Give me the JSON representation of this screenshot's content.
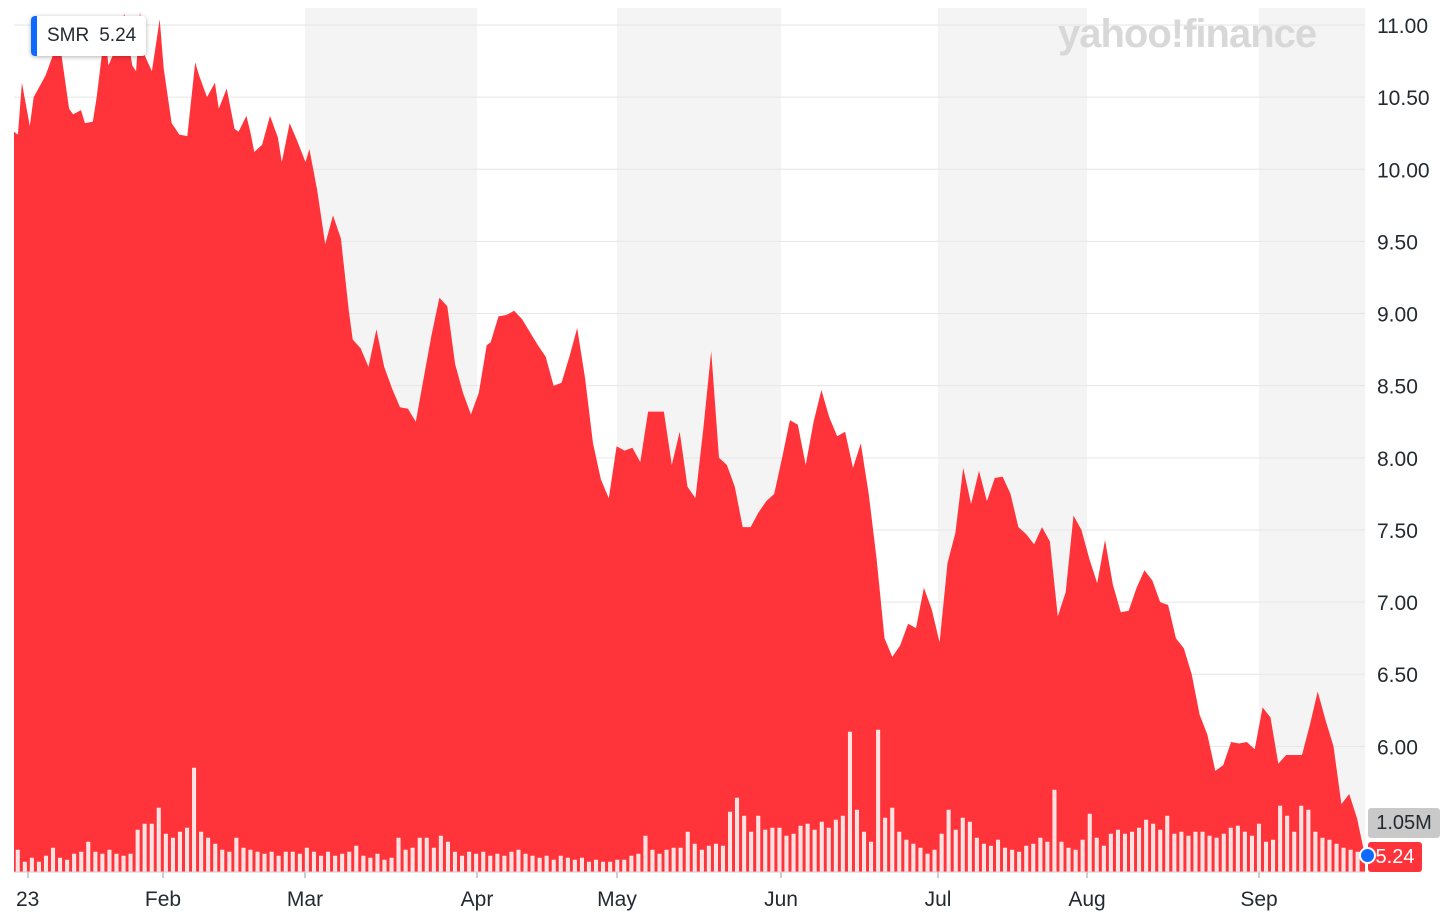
{
  "tooltip": {
    "symbol": "SMR",
    "price": "5.24"
  },
  "watermark": "yahoo!finance",
  "badges": {
    "volume": "1.05M",
    "price": "5.24"
  },
  "colors": {
    "area": "#ff333a",
    "band": "#f4f4f4",
    "grid": "#e6e6e6",
    "accent": "#0f69ff"
  },
  "chart_data": {
    "type": "area",
    "ticker": "SMR",
    "ylim": [
      5.24,
      11.1
    ],
    "yticks": [
      "11.00",
      "10.50",
      "10.00",
      "9.50",
      "9.00",
      "8.50",
      "8.00",
      "7.50",
      "7.00",
      "6.50",
      "6.00"
    ],
    "xticks": [
      "23",
      "Feb",
      "Mar",
      "Apr",
      "May",
      "Jun",
      "Jul",
      "Aug",
      "Sep"
    ],
    "price_points": [
      [
        "Jan 1",
        10.26
      ],
      [
        "Jan 2",
        10.24
      ],
      [
        "Jan 3",
        10.6
      ],
      [
        "Jan 5",
        10.3
      ],
      [
        "Jan 6",
        10.5
      ],
      [
        "Jan 8",
        10.6
      ],
      [
        "Jan 9",
        10.65
      ],
      [
        "Jan 11",
        10.8
      ],
      [
        "Jan 12",
        10.9
      ],
      [
        "Jan 13",
        10.8
      ],
      [
        "Jan 15",
        10.42
      ],
      [
        "Jan 16",
        10.38
      ],
      [
        "Jan 18",
        10.41
      ],
      [
        "Jan 19",
        10.32
      ],
      [
        "Jan 21",
        10.33
      ],
      [
        "Jan 22",
        10.5
      ],
      [
        "Jan 24",
        10.95
      ],
      [
        "Jan 25",
        10.72
      ],
      [
        "Jan 27",
        10.85
      ],
      [
        "Jan 29",
        11.08
      ],
      [
        "Jan 31",
        10.72
      ],
      [
        "Feb 1",
        10.68
      ],
      [
        "Feb 2",
        11.09
      ],
      [
        "Feb 3",
        10.8
      ],
      [
        "Feb 5",
        10.68
      ],
      [
        "Feb 7",
        11.04
      ],
      [
        "Feb 8",
        10.7
      ],
      [
        "Feb 10",
        10.32
      ],
      [
        "Feb 12",
        10.24
      ],
      [
        "Feb 14",
        10.23
      ],
      [
        "Feb 16",
        10.74
      ],
      [
        "Feb 17",
        10.65
      ],
      [
        "Feb 19",
        10.5
      ],
      [
        "Feb 21",
        10.6
      ],
      [
        "Feb 22",
        10.42
      ],
      [
        "Feb 24",
        10.56
      ],
      [
        "Feb 26",
        10.28
      ],
      [
        "Feb 27",
        10.26
      ],
      [
        "Mar 1",
        10.37
      ],
      [
        "Mar 2",
        10.26
      ],
      [
        "Mar 3",
        10.12
      ],
      [
        "Mar 5",
        10.17
      ],
      [
        "Mar 7",
        10.37
      ],
      [
        "Mar 9",
        10.22
      ],
      [
        "Mar 10",
        10.05
      ],
      [
        "Mar 12",
        10.32
      ],
      [
        "Mar 14",
        10.19
      ],
      [
        "Mar 16",
        10.05
      ],
      [
        "Mar 17",
        10.14
      ],
      [
        "Mar 19",
        9.85
      ],
      [
        "Mar 21",
        9.48
      ],
      [
        "Mar 23",
        9.68
      ],
      [
        "Mar 25",
        9.52
      ],
      [
        "Mar 27",
        9.02
      ],
      [
        "Mar 28",
        8.82
      ],
      [
        "Mar 30",
        8.76
      ],
      [
        "Apr 1",
        8.63
      ],
      [
        "Apr 3",
        8.89
      ],
      [
        "Apr 5",
        8.63
      ],
      [
        "Apr 7",
        8.48
      ],
      [
        "Apr 9",
        8.35
      ],
      [
        "Apr 11",
        8.34
      ],
      [
        "Apr 13",
        8.25
      ],
      [
        "Apr 15",
        8.55
      ],
      [
        "Apr 17",
        8.85
      ],
      [
        "Apr 19",
        9.11
      ],
      [
        "Apr 21",
        9.05
      ],
      [
        "Apr 23",
        8.65
      ],
      [
        "Apr 25",
        8.45
      ],
      [
        "Apr 27",
        8.3
      ],
      [
        "Apr 29",
        8.45
      ],
      [
        "May 1",
        8.78
      ],
      [
        "May 2",
        8.8
      ],
      [
        "May 4",
        8.98
      ],
      [
        "May 6",
        8.99
      ],
      [
        "May 8",
        9.02
      ],
      [
        "May 10",
        8.96
      ],
      [
        "May 12",
        8.87
      ],
      [
        "May 14",
        8.78
      ],
      [
        "May 16",
        8.7
      ],
      [
        "May 18",
        8.5
      ],
      [
        "May 20",
        8.52
      ],
      [
        "May 22",
        8.7
      ],
      [
        "May 24",
        8.9
      ],
      [
        "May 26",
        8.55
      ],
      [
        "May 28",
        8.1
      ],
      [
        "May 30",
        7.85
      ],
      [
        "Jun 1",
        7.72
      ],
      [
        "Jun 3",
        8.08
      ],
      [
        "Jun 5",
        8.05
      ],
      [
        "Jun 7",
        8.07
      ],
      [
        "Jun 9",
        7.97
      ],
      [
        "Jun 11",
        8.32
      ],
      [
        "Jun 13",
        8.32
      ],
      [
        "Jun 15",
        8.32
      ],
      [
        "Jun 17",
        7.95
      ],
      [
        "Jun 19",
        8.18
      ],
      [
        "Jun 21",
        7.8
      ],
      [
        "Jun 23",
        7.72
      ],
      [
        "Jun 25",
        8.2
      ],
      [
        "Jun 27",
        8.74
      ],
      [
        "Jun 29",
        8.0
      ],
      [
        "Jul 1",
        7.95
      ],
      [
        "Jul 3",
        7.8
      ],
      [
        "Jul 5",
        7.52
      ],
      [
        "Jul 7",
        7.52
      ],
      [
        "Jul 9",
        7.62
      ],
      [
        "Jul 11",
        7.7
      ],
      [
        "Jul 13",
        7.75
      ],
      [
        "Jul 15",
        8.0
      ],
      [
        "Jul 17",
        8.26
      ],
      [
        "Jul 19",
        8.23
      ],
      [
        "Jul 21",
        7.95
      ],
      [
        "Jul 23",
        8.25
      ],
      [
        "Jul 25",
        8.47
      ],
      [
        "Jul 27",
        8.28
      ],
      [
        "Jul 29",
        8.15
      ],
      [
        "Jul 31",
        8.18
      ],
      [
        "Aug 2",
        7.93
      ],
      [
        "Aug 4",
        8.1
      ],
      [
        "Aug 6",
        7.75
      ],
      [
        "Aug 8",
        7.3
      ],
      [
        "Aug 10",
        6.75
      ],
      [
        "Aug 12",
        6.62
      ],
      [
        "Aug 14",
        6.7
      ],
      [
        "Aug 16",
        6.85
      ],
      [
        "Aug 18",
        6.82
      ],
      [
        "Aug 20",
        7.1
      ],
      [
        "Aug 22",
        6.95
      ],
      [
        "Aug 24",
        6.72
      ],
      [
        "Aug 26",
        7.27
      ],
      [
        "Aug 28",
        7.48
      ],
      [
        "Aug 30",
        7.93
      ],
      [
        "Sep 1",
        7.68
      ],
      [
        "Sep 3",
        7.91
      ],
      [
        "Sep 5",
        7.7
      ],
      [
        "Sep 7",
        7.86
      ],
      [
        "Sep 9",
        7.87
      ],
      [
        "Sep 11",
        7.75
      ],
      [
        "Sep 13",
        7.52
      ],
      [
        "Sep 15",
        7.47
      ],
      [
        "Sep 17",
        7.4
      ],
      [
        "Sep 19",
        7.52
      ],
      [
        "Sep 21",
        7.42
      ],
      [
        "Sep 23",
        6.9
      ],
      [
        "Sep 25",
        7.07
      ],
      [
        "Sep 27",
        7.6
      ],
      [
        "Sep 29",
        7.5
      ],
      [
        "Oct 1",
        7.3
      ],
      [
        "Oct 3",
        7.13
      ],
      [
        "Oct 5",
        7.43
      ],
      [
        "Oct 7",
        7.12
      ],
      [
        "Oct 9",
        6.93
      ],
      [
        "Oct 11",
        6.94
      ],
      [
        "Oct 13",
        7.1
      ],
      [
        "Oct 15",
        7.22
      ],
      [
        "Oct 17",
        7.15
      ],
      [
        "Oct 19",
        7.0
      ],
      [
        "Oct 21",
        6.98
      ],
      [
        "Oct 23",
        6.75
      ],
      [
        "Oct 25",
        6.68
      ],
      [
        "Oct 27",
        6.5
      ],
      [
        "Oct 29",
        6.22
      ],
      [
        "Oct 31",
        6.08
      ],
      [
        "Nov 2",
        5.83
      ],
      [
        "Nov 4",
        5.87
      ],
      [
        "Nov 6",
        6.03
      ],
      [
        "Nov 8",
        6.02
      ],
      [
        "Nov 10",
        6.03
      ],
      [
        "Nov 12",
        5.98
      ],
      [
        "Nov 14",
        6.27
      ],
      [
        "Nov 16",
        6.2
      ],
      [
        "Nov 18",
        5.88
      ],
      [
        "Nov 20",
        5.94
      ],
      [
        "Nov 22",
        5.94
      ],
      [
        "Nov 24",
        5.94
      ],
      [
        "Nov 26",
        6.15
      ],
      [
        "Nov 28",
        6.38
      ],
      [
        "Nov 30",
        6.18
      ],
      [
        "Dec 2",
        6.0
      ],
      [
        "Dec 4",
        5.6
      ],
      [
        "Dec 6",
        5.67
      ],
      [
        "Dec 8",
        5.5
      ],
      [
        "Dec 10",
        5.24
      ]
    ],
    "volume_points": [
      [
        0.1,
        0.55
      ],
      [
        0.2,
        0.25
      ],
      [
        0.3,
        0.35
      ],
      [
        0.4,
        0.25
      ],
      [
        0.5,
        0.4
      ],
      [
        0.6,
        0.6
      ],
      [
        0.7,
        0.35
      ],
      [
        0.8,
        0.3
      ],
      [
        0.9,
        0.45
      ],
      [
        1.0,
        0.5
      ],
      [
        1.1,
        0.75
      ],
      [
        1.2,
        0.5
      ],
      [
        1.3,
        0.45
      ],
      [
        1.4,
        0.55
      ],
      [
        1.5,
        0.45
      ],
      [
        1.6,
        0.4
      ],
      [
        1.7,
        0.45
      ],
      [
        1.8,
        1.05
      ],
      [
        1.9,
        1.2
      ],
      [
        2.0,
        1.2
      ],
      [
        2.1,
        1.6
      ],
      [
        2.2,
        0.95
      ],
      [
        2.3,
        0.85
      ],
      [
        2.4,
        1.0
      ],
      [
        2.5,
        1.1
      ],
      [
        2.6,
        2.6
      ],
      [
        2.7,
        1.0
      ],
      [
        2.8,
        0.85
      ],
      [
        2.9,
        0.7
      ],
      [
        3.0,
        0.55
      ],
      [
        3.1,
        0.5
      ],
      [
        3.2,
        0.85
      ],
      [
        3.3,
        0.6
      ],
      [
        3.4,
        0.55
      ],
      [
        3.5,
        0.5
      ],
      [
        3.6,
        0.45
      ],
      [
        3.7,
        0.5
      ],
      [
        3.8,
        0.4
      ],
      [
        3.9,
        0.5
      ],
      [
        4.0,
        0.5
      ],
      [
        4.1,
        0.45
      ],
      [
        4.2,
        0.6
      ],
      [
        4.3,
        0.5
      ],
      [
        4.4,
        0.4
      ],
      [
        4.5,
        0.5
      ],
      [
        4.6,
        0.4
      ],
      [
        4.7,
        0.45
      ],
      [
        4.8,
        0.5
      ],
      [
        4.9,
        0.65
      ],
      [
        5.0,
        0.4
      ],
      [
        5.1,
        0.35
      ],
      [
        5.2,
        0.45
      ],
      [
        5.3,
        0.3
      ],
      [
        5.4,
        0.35
      ],
      [
        5.5,
        0.85
      ],
      [
        5.6,
        0.55
      ],
      [
        5.7,
        0.6
      ],
      [
        5.8,
        0.85
      ],
      [
        5.9,
        0.85
      ],
      [
        6.0,
        0.6
      ],
      [
        6.1,
        0.9
      ],
      [
        6.2,
        0.75
      ],
      [
        6.3,
        0.5
      ],
      [
        6.4,
        0.4
      ],
      [
        6.5,
        0.5
      ],
      [
        6.6,
        0.45
      ],
      [
        6.7,
        0.5
      ],
      [
        6.8,
        0.4
      ],
      [
        6.9,
        0.45
      ],
      [
        7.0,
        0.4
      ],
      [
        7.1,
        0.5
      ],
      [
        7.2,
        0.55
      ],
      [
        7.3,
        0.45
      ],
      [
        7.4,
        0.4
      ],
      [
        7.5,
        0.35
      ],
      [
        7.6,
        0.4
      ],
      [
        7.7,
        0.3
      ],
      [
        7.8,
        0.4
      ],
      [
        7.9,
        0.35
      ],
      [
        8.0,
        0.3
      ],
      [
        8.1,
        0.35
      ],
      [
        8.2,
        0.25
      ],
      [
        8.3,
        0.3
      ],
      [
        8.4,
        0.25
      ],
      [
        8.5,
        0.25
      ],
      [
        8.6,
        0.3
      ],
      [
        8.7,
        0.3
      ],
      [
        8.8,
        0.4
      ],
      [
        8.9,
        0.45
      ],
      [
        9.0,
        0.9
      ],
      [
        9.1,
        0.55
      ],
      [
        9.2,
        0.45
      ],
      [
        9.3,
        0.55
      ],
      [
        9.4,
        0.6
      ],
      [
        9.5,
        0.6
      ],
      [
        9.6,
        1.0
      ],
      [
        9.7,
        0.7
      ],
      [
        9.8,
        0.55
      ],
      [
        9.9,
        0.65
      ],
      [
        10.0,
        0.7
      ],
      [
        10.1,
        0.65
      ],
      [
        10.2,
        1.5
      ],
      [
        10.3,
        1.85
      ],
      [
        10.4,
        1.4
      ],
      [
        10.5,
        1.0
      ],
      [
        10.6,
        1.4
      ],
      [
        10.7,
        1.05
      ],
      [
        10.8,
        1.1
      ],
      [
        10.9,
        1.1
      ],
      [
        11.0,
        0.9
      ],
      [
        11.1,
        0.95
      ],
      [
        11.2,
        1.15
      ],
      [
        11.3,
        1.2
      ],
      [
        11.4,
        1.05
      ],
      [
        11.5,
        1.25
      ],
      [
        11.6,
        1.1
      ],
      [
        11.7,
        1.3
      ],
      [
        11.8,
        1.4
      ],
      [
        11.9,
        3.5
      ],
      [
        12.0,
        1.55
      ],
      [
        12.1,
        1.0
      ],
      [
        12.2,
        0.75
      ],
      [
        12.3,
        3.55
      ],
      [
        12.4,
        1.35
      ],
      [
        12.5,
        1.6
      ],
      [
        12.6,
        1.0
      ],
      [
        12.7,
        0.8
      ],
      [
        12.8,
        0.7
      ],
      [
        12.9,
        0.6
      ],
      [
        13.0,
        0.45
      ],
      [
        13.1,
        0.55
      ],
      [
        13.2,
        0.95
      ],
      [
        13.3,
        1.55
      ],
      [
        13.4,
        1.05
      ],
      [
        13.5,
        1.35
      ],
      [
        13.6,
        1.25
      ],
      [
        13.7,
        0.85
      ],
      [
        13.8,
        0.7
      ],
      [
        13.9,
        0.65
      ],
      [
        14.0,
        0.8
      ],
      [
        14.1,
        0.6
      ],
      [
        14.2,
        0.55
      ],
      [
        14.3,
        0.5
      ],
      [
        14.4,
        0.65
      ],
      [
        14.5,
        0.7
      ],
      [
        14.6,
        0.85
      ],
      [
        14.7,
        0.75
      ],
      [
        14.8,
        2.05
      ],
      [
        14.9,
        0.75
      ],
      [
        15.0,
        0.6
      ],
      [
        15.1,
        0.55
      ],
      [
        15.2,
        0.8
      ],
      [
        15.3,
        1.45
      ],
      [
        15.4,
        0.85
      ],
      [
        15.5,
        0.65
      ],
      [
        15.6,
        0.95
      ],
      [
        15.7,
        1.05
      ],
      [
        15.8,
        0.95
      ],
      [
        15.9,
        1.0
      ],
      [
        16.0,
        1.1
      ],
      [
        16.1,
        1.3
      ],
      [
        16.2,
        1.2
      ],
      [
        16.3,
        1.05
      ],
      [
        16.4,
        1.4
      ],
      [
        16.5,
        0.95
      ],
      [
        16.6,
        1.0
      ],
      [
        16.7,
        0.9
      ],
      [
        16.8,
        1.0
      ],
      [
        16.9,
        1.0
      ],
      [
        17.0,
        0.9
      ],
      [
        17.1,
        0.85
      ],
      [
        17.2,
        0.95
      ],
      [
        17.3,
        1.1
      ],
      [
        17.4,
        1.15
      ],
      [
        17.5,
        1.0
      ],
      [
        17.6,
        0.9
      ],
      [
        17.7,
        1.2
      ],
      [
        17.8,
        0.75
      ],
      [
        17.9,
        0.8
      ],
      [
        18.0,
        1.65
      ],
      [
        18.1,
        1.4
      ],
      [
        18.2,
        1.0
      ],
      [
        18.3,
        1.65
      ],
      [
        18.4,
        1.55
      ],
      [
        18.5,
        1.0
      ],
      [
        18.6,
        0.85
      ],
      [
        18.7,
        0.8
      ],
      [
        18.8,
        0.7
      ],
      [
        18.9,
        0.6
      ],
      [
        19.0,
        0.55
      ],
      [
        19.1,
        0.5
      ]
    ],
    "volume_label": "1.05M",
    "last_price": "5.24"
  }
}
